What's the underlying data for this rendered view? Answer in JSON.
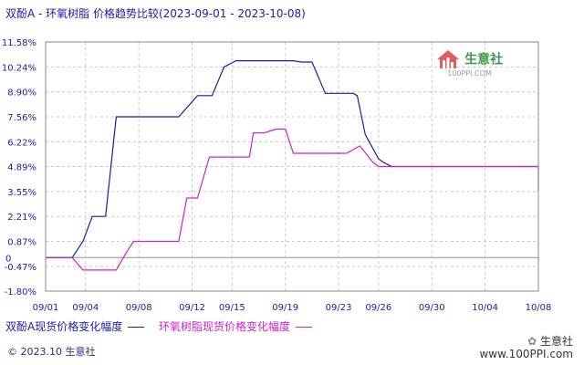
{
  "chart_data": {
    "type": "line",
    "title": "双酚A - 环氧树脂 价格趋势比较(2023-09-01 - 2023-10-08)",
    "y_ticks": [
      "11.58%",
      "10.24%",
      "8.90%",
      "7.56%",
      "6.22%",
      "4.89%",
      "3.55%",
      "2.21%",
      "0.87%",
      "-0.47%",
      "-1.80%"
    ],
    "y_tick_values": [
      11.58,
      10.24,
      8.9,
      7.56,
      6.22,
      4.89,
      3.55,
      2.21,
      0.87,
      -0.47,
      -1.8
    ],
    "zero_label": "0",
    "ylim": [
      -1.8,
      11.58
    ],
    "x_ticks": [
      "09/01",
      "09/04",
      "09/08",
      "09/12",
      "09/15",
      "09/19",
      "09/23",
      "09/26",
      "09/30",
      "10/04",
      "10/08"
    ],
    "x_tick_days": [
      0,
      3,
      7,
      11,
      14,
      18,
      22,
      25,
      29,
      33,
      37
    ],
    "x_range_days": [
      0,
      37
    ],
    "grid": true,
    "series": [
      {
        "name": "双酚A现货价格变化幅度",
        "color": "#1a1aa8",
        "days": [
          0,
          2,
          2.8,
          3.5,
          4.5,
          5.3,
          5.6,
          8.6,
          9.6,
          10,
          11.4,
          12.5,
          13.4,
          14.3,
          15.3,
          18.6,
          19.2,
          20,
          21,
          21.9,
          22.6,
          23.1,
          23.4,
          24,
          25,
          25.4,
          26,
          37,
          37.7
        ],
        "values": [
          0,
          0,
          0.87,
          2.21,
          2.21,
          7.56,
          7.56,
          7.56,
          7.56,
          7.56,
          8.7,
          8.7,
          10.24,
          10.57,
          10.57,
          10.57,
          10.5,
          10.5,
          8.82,
          8.82,
          8.82,
          8.82,
          8.7,
          6.6,
          5.3,
          5.1,
          4.89,
          4.89,
          3.55
        ]
      },
      {
        "name": "环氧树脂现货价格变化幅度",
        "color": "#d020d0",
        "days": [
          0,
          2,
          2.8,
          3.5,
          4.5,
          5.3,
          6,
          6.6,
          7.2,
          8.5,
          9.6,
          10,
          10.6,
          11.4,
          12.3,
          13.4,
          14.3,
          15.3,
          15.6,
          16.4,
          17.3,
          18,
          18.6,
          19.2,
          19.8,
          20,
          22.6,
          23.6,
          24.6,
          25,
          25.5,
          26,
          37,
          37.7
        ],
        "values": [
          0,
          0,
          -0.67,
          -0.67,
          -0.67,
          -0.67,
          0.2,
          0.87,
          0.87,
          0.87,
          0.87,
          0.87,
          3.2,
          3.2,
          5.4,
          5.4,
          5.4,
          5.4,
          6.7,
          6.7,
          6.9,
          6.9,
          5.6,
          5.6,
          5.6,
          5.6,
          5.6,
          6.0,
          5.1,
          4.89,
          4.89,
          4.89,
          4.89,
          4.89
        ]
      }
    ]
  },
  "legend": {
    "bpa_label": "双酚A现货价格变化幅度",
    "epoxy_label": "环氧树脂现货价格变化幅度"
  },
  "footer": {
    "copyright": "© 2023.10 生意社",
    "brand_name": "生意社",
    "brand_url": "www.100PPI.com"
  },
  "watermark": {
    "name": "生意社",
    "url": "100PPI.COM"
  },
  "colors": {
    "axis_text": "#1a1aa8",
    "grid": "#c8c8c8",
    "zero_line": "#909090"
  }
}
